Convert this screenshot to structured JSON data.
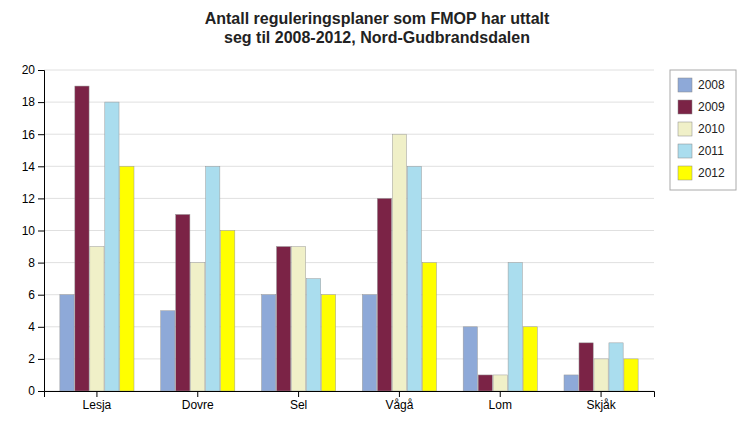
{
  "chart_data": {
    "type": "bar",
    "title": "Antall reguleringsplaner som FMOP har  uttalt\nseg til 2008-2012, Nord-Gudbrandsdalen",
    "categories": [
      "Lesja",
      "Dovre",
      "Sel",
      "Vågå",
      "Lom",
      "Skjåk"
    ],
    "series": [
      {
        "name": "2008",
        "color": "#8EA9D8",
        "values": [
          6,
          5,
          6,
          6,
          4,
          1
        ]
      },
      {
        "name": "2009",
        "color": "#7B2346",
        "values": [
          19,
          11,
          9,
          12,
          1,
          3
        ]
      },
      {
        "name": "2010",
        "color": "#F0F0C8",
        "values": [
          9,
          8,
          9,
          16,
          1,
          2
        ]
      },
      {
        "name": "2011",
        "color": "#AADDEE",
        "values": [
          18,
          14,
          7,
          14,
          8,
          3
        ]
      },
      {
        "name": "2012",
        "color": "#FFFF00",
        "values": [
          14,
          10,
          6,
          8,
          4,
          2
        ]
      }
    ],
    "ylim": [
      0,
      20
    ],
    "yticks": [
      0,
      2,
      4,
      6,
      8,
      10,
      12,
      14,
      16,
      18,
      20
    ],
    "grid": true,
    "legend": "right"
  }
}
